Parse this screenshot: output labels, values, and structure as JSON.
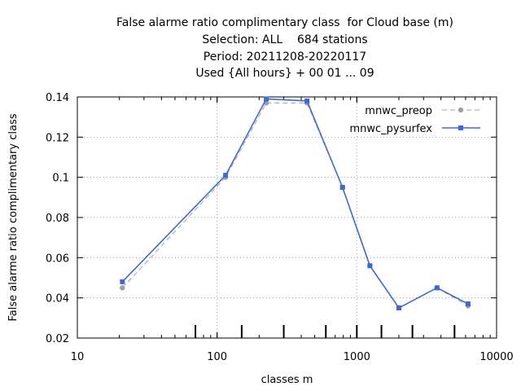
{
  "chart_data": {
    "type": "line",
    "title_lines": [
      "False alarme ratio complimentary class  for Cloud base (m)",
      "Selection: ALL    684 stations",
      "Period: 20211208-20220117",
      "Used {All hours} + 00 01 ... 09"
    ],
    "xlabel": "classes m",
    "ylabel": "False alarme ratio complimentary class",
    "x_scale": "log",
    "xlim": [
      10,
      10000
    ],
    "ylim": [
      0.02,
      0.14
    ],
    "x_ticks": [
      10,
      100,
      1000,
      10000
    ],
    "x_tick_labels": [
      "10",
      "100",
      "1000",
      "10000"
    ],
    "y_ticks": [
      0.02,
      0.04,
      0.06,
      0.08,
      0.1,
      0.12,
      0.14
    ],
    "y_tick_labels": [
      "0.02",
      "0.04",
      "0.06",
      "0.08",
      "0.1",
      "0.12",
      "0.14"
    ],
    "grid": true,
    "legend_position": "top-right",
    "class_limits": [
      70,
      150,
      300,
      600,
      1000,
      1500,
      2500,
      5000
    ],
    "series": [
      {
        "name": "mnwc_preop",
        "color": "#a0a0a0",
        "dash": true,
        "x": [
          21,
          115,
          225,
          440,
          790,
          1240,
          2000,
          3750,
          6250
        ],
        "y": [
          0.045,
          0.1,
          0.137,
          0.137,
          0.095,
          0.056,
          0.035,
          0.045,
          0.036
        ]
      },
      {
        "name": "mnwc_pysurfex",
        "color": "#4169cd",
        "dash": false,
        "x": [
          21,
          115,
          225,
          440,
          790,
          1240,
          2000,
          3750,
          6250
        ],
        "y": [
          0.048,
          0.101,
          0.139,
          0.138,
          0.095,
          0.056,
          0.035,
          0.045,
          0.037
        ]
      }
    ]
  }
}
